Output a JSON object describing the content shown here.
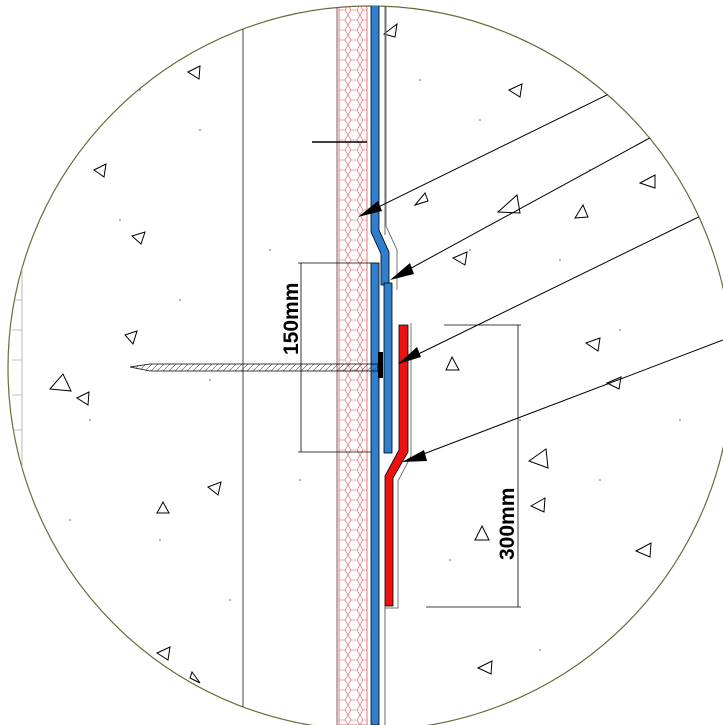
{
  "dimensions": {
    "overlap_lower": {
      "label": "150mm"
    },
    "overlap_upper": {
      "label": "300mm"
    }
  },
  "colors": {
    "background": "#ffffff",
    "circle_outline": "#6b6b3a",
    "insulation_hatch": "#e0565e",
    "membrane_lower": "#2f7fcf",
    "membrane_flashing": "#ee1111",
    "fastener": "#000000"
  },
  "icons": [
    "aggregate-triangle",
    "leader-arrow",
    "insulation-hatch"
  ]
}
